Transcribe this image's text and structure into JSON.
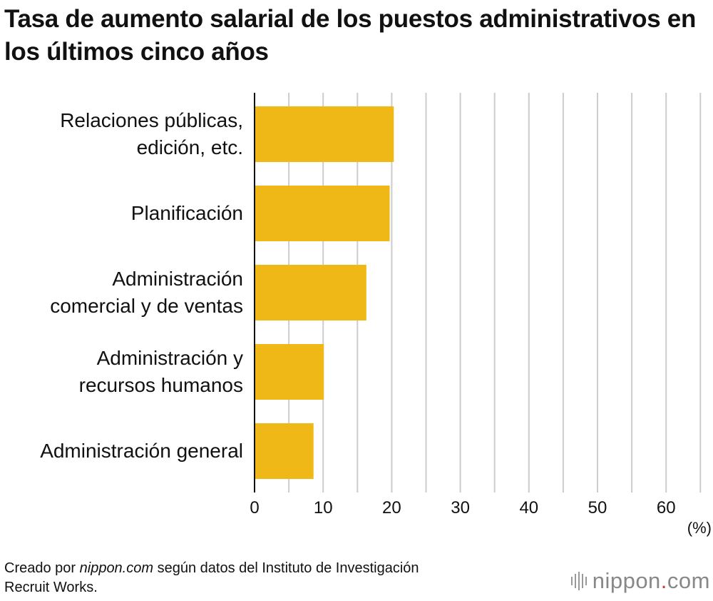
{
  "chart_data": {
    "type": "bar",
    "orientation": "horizontal",
    "title": "Tasa de aumento salarial de los puestos administrativos en los últimos cinco años",
    "categories": [
      [
        "Relaciones públicas,",
        "edición, etc."
      ],
      [
        "Planificación"
      ],
      [
        "Administración",
        "comercial y de ventas"
      ],
      [
        "Administración y",
        "recursos humanos"
      ],
      [
        "Administración general"
      ]
    ],
    "values": [
      20.3,
      19.7,
      16.3,
      10.1,
      8.6
    ],
    "xlim": [
      0,
      65
    ],
    "xticks": [
      0,
      10,
      20,
      30,
      40,
      50,
      60
    ],
    "unit_label": "(%)",
    "grid": true,
    "bar_color": "#f0b817"
  },
  "footer": {
    "prefix": "Creado por ",
    "site": "nippon.com",
    "suffix": " según datos del Instituto de Investigación",
    "line2": "Recruit Works."
  },
  "brand": {
    "name": "nippon",
    "dot": ".",
    "tld": "com",
    "dot_color": "#d63a2f"
  }
}
